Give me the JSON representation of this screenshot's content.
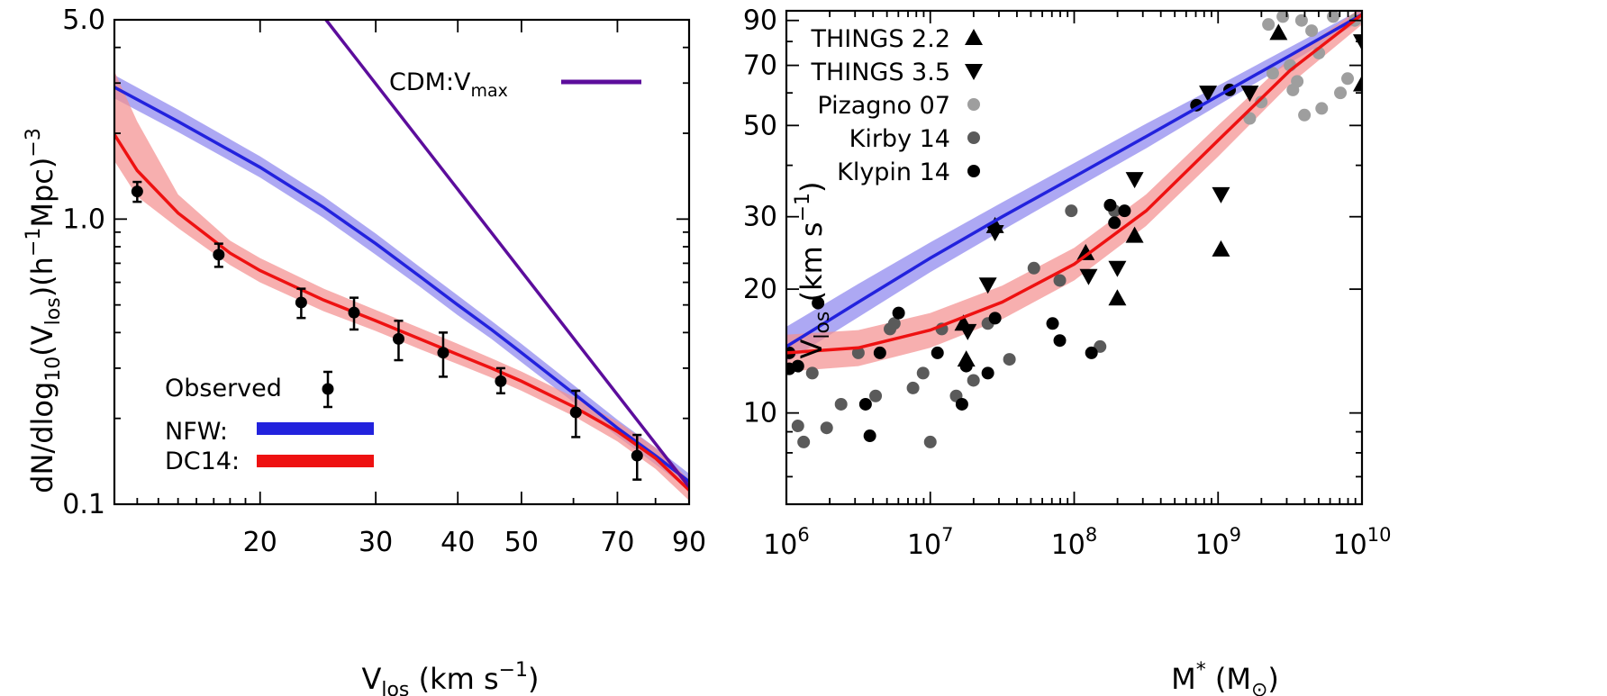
{
  "chart_data": [
    {
      "type": "line",
      "panel": "left",
      "xscale": "log",
      "yscale": "log",
      "xlim": [
        12,
        90
      ],
      "ylim": [
        0.1,
        5.0
      ],
      "xticks": [
        20,
        30,
        40,
        50,
        70,
        90
      ],
      "yticks": [
        0.1,
        1.0,
        5.0
      ],
      "xtick_labels": [
        "20",
        "30",
        "40",
        "50",
        "70",
        "90"
      ],
      "ytick_labels": [
        "0.1",
        "1.0",
        "5.0"
      ],
      "xlabel": {
        "main": "V",
        "sub": "los",
        "rest": " (km s",
        "sup": "−1",
        "end": ")"
      },
      "ylabel": {
        "a": "dN/dlog",
        "a_sub": "10",
        "b": "(V",
        "b_sub": "los",
        "c": ")(h",
        "c_sup": "−1",
        "d": "Mpc)",
        "d_sup": "−3"
      },
      "series": [
        {
          "name": "NFW",
          "color": "#2222dd",
          "band_color": "#8e86ee",
          "x": [
            12,
            15,
            20,
            25,
            30,
            35,
            40,
            45,
            50,
            60,
            70,
            80,
            90
          ],
          "y": [
            2.9,
            2.2,
            1.52,
            1.1,
            0.82,
            0.63,
            0.5,
            0.41,
            0.34,
            0.245,
            0.185,
            0.148,
            0.12
          ],
          "band_lo": [
            2.65,
            2.02,
            1.4,
            1.01,
            0.75,
            0.58,
            0.46,
            0.38,
            0.315,
            0.228,
            0.173,
            0.138,
            0.112
          ],
          "band_hi": [
            3.2,
            2.42,
            1.66,
            1.2,
            0.89,
            0.68,
            0.54,
            0.44,
            0.365,
            0.262,
            0.198,
            0.158,
            0.128
          ]
        },
        {
          "name": "DC14",
          "color": "#ee1111",
          "band_color": "#f49090",
          "x": [
            12,
            13,
            15,
            18,
            20,
            25,
            30,
            35,
            40,
            45,
            50,
            60,
            70,
            80,
            90
          ],
          "y": [
            1.98,
            1.48,
            1.05,
            0.76,
            0.66,
            0.52,
            0.44,
            0.38,
            0.335,
            0.3,
            0.27,
            0.22,
            0.18,
            0.145,
            0.112
          ],
          "band_lo": [
            1.6,
            1.2,
            0.93,
            0.69,
            0.6,
            0.475,
            0.405,
            0.35,
            0.31,
            0.278,
            0.25,
            0.204,
            0.166,
            0.133,
            0.103
          ],
          "band_hi": [
            3.3,
            2.2,
            1.22,
            0.84,
            0.73,
            0.57,
            0.48,
            0.415,
            0.365,
            0.325,
            0.292,
            0.238,
            0.195,
            0.158,
            0.122
          ]
        },
        {
          "name": "CDM:Vmax",
          "color": "#5c0d9c",
          "x": [
            25.2,
            90
          ],
          "y": [
            5.0,
            0.115
          ]
        }
      ],
      "observed": {
        "name": "Observed",
        "x": [
          13,
          17.3,
          23.1,
          27.8,
          32.5,
          38,
          46.5,
          60.5,
          75
        ],
        "y": [
          1.25,
          0.75,
          0.51,
          0.47,
          0.38,
          0.34,
          0.27,
          0.21,
          0.148
        ],
        "err_lo": [
          1.15,
          0.68,
          0.45,
          0.41,
          0.32,
          0.28,
          0.245,
          0.172,
          0.122
        ],
        "err_hi": [
          1.35,
          0.82,
          0.57,
          0.53,
          0.44,
          0.4,
          0.3,
          0.25,
          0.175
        ]
      },
      "legend": {
        "observed": "Observed",
        "nfw": "NFW:",
        "dc14": "DC14:",
        "cdm_main": "CDM:V",
        "cdm_sub": "max"
      }
    },
    {
      "type": "scatter",
      "panel": "right",
      "xscale": "log",
      "yscale": "log",
      "xlim": [
        1000000,
        10000000000
      ],
      "ylim": [
        6,
        95
      ],
      "xticks": [
        1000000,
        10000000,
        100000000,
        1000000000,
        10000000000
      ],
      "xtick_exponents": [
        "6",
        "7",
        "8",
        "9",
        "10"
      ],
      "xtick_base": "10",
      "yticks": [
        10,
        20,
        30,
        50,
        70,
        90
      ],
      "ytick_labels": [
        "10",
        "20",
        "30",
        "50",
        "70",
        "90"
      ],
      "xlabel": {
        "main": "M",
        "sup": "*",
        "rest": " (M",
        "sun": "⊙",
        "end": ")"
      },
      "ylabel": {
        "main": "V",
        "sub": "los",
        "rest": " (km s",
        "sup": "−1",
        "end": ")"
      },
      "series_lines": [
        {
          "name": "NFW",
          "color": "#2222dd",
          "band_color": "#8e86ee",
          "logx": [
            6,
            6.5,
            7,
            7.5,
            8,
            8.5,
            9,
            9.5,
            10
          ],
          "y": [
            14.5,
            18.6,
            23.8,
            30,
            37.5,
            47,
            59,
            74,
            93
          ],
          "band_lo": [
            13.3,
            17.1,
            22,
            27.8,
            35,
            44,
            56,
            71,
            90
          ],
          "band_hi": [
            16.2,
            20.6,
            26,
            32.5,
            40.5,
            50.5,
            62.5,
            77.5,
            96
          ]
        },
        {
          "name": "DC14",
          "color": "#ee1111",
          "band_color": "#f49090",
          "logx": [
            6,
            6.5,
            7,
            7.5,
            8,
            8.5,
            9,
            9.5,
            10
          ],
          "y": [
            14.0,
            14.4,
            15.9,
            18.6,
            23,
            31,
            46,
            68,
            93
          ],
          "band_lo": [
            12.6,
            13.0,
            14.4,
            16.9,
            21.0,
            28.5,
            42,
            63,
            88
          ],
          "band_hi": [
            15.5,
            15.9,
            17.5,
            20.4,
            25.2,
            34,
            50,
            73,
            97
          ]
        }
      ],
      "scatter_series": [
        {
          "name": "THINGS 2.2",
          "marker": "triangle-up",
          "color": "#000000",
          "logx": [
            7.25,
            7.45,
            7.23,
            8.08,
            8.3,
            8.42,
            9.02,
            9.42,
            10.0
          ],
          "y": [
            13.5,
            28.5,
            16.5,
            24.5,
            19,
            27,
            25,
            84,
            63
          ]
        },
        {
          "name": "THINGS 3.5",
          "marker": "triangle-down",
          "color": "#000000",
          "logx": [
            7.26,
            7.45,
            7.4,
            8.1,
            8.3,
            8.42,
            8.93,
            9.02,
            9.22,
            10.0
          ],
          "y": [
            15.8,
            27.5,
            20.5,
            21.5,
            22.5,
            37,
            60,
            34,
            60,
            80
          ]
        },
        {
          "name": "Pizagno 07",
          "marker": "circle",
          "color": "#9e9e9e",
          "logx": [
            9.22,
            9.3,
            9.35,
            9.38,
            9.45,
            9.5,
            9.52,
            9.55,
            9.58,
            9.6,
            9.65,
            9.7,
            9.72,
            9.8,
            9.85,
            9.9,
            9.95
          ],
          "y": [
            52,
            57,
            88,
            67,
            92,
            70,
            61,
            64,
            90,
            53,
            85,
            75,
            55,
            92,
            60,
            65,
            90
          ]
        },
        {
          "name": "Kirby 14",
          "marker": "circle",
          "color": "#5a5a5a",
          "logx": [
            6.08,
            6.12,
            6.18,
            6.28,
            6.38,
            6.5,
            6.62,
            6.75,
            6.95,
            7.0,
            7.18,
            7.3,
            7.4,
            7.55,
            7.72,
            7.9,
            7.98,
            8.18,
            8.28,
            6.72,
            6.88,
            7.08
          ],
          "y": [
            9.3,
            8.5,
            12.5,
            9.2,
            10.5,
            14,
            11,
            16.5,
            12.5,
            8.5,
            11,
            12,
            16.5,
            13.5,
            22.5,
            21,
            31,
            14.5,
            31,
            16,
            11.5,
            16
          ],
          "logx_extra": []
        },
        {
          "name": "Klypin 14",
          "marker": "circle",
          "color": "#000000",
          "logx": [
            6.02,
            6.08,
            6.22,
            6.55,
            6.58,
            6.65,
            6.78,
            7.05,
            7.22,
            7.25,
            7.4,
            7.45,
            7.85,
            7.9,
            8.12,
            8.25,
            8.28,
            8.35,
            8.85,
            9.08,
            6.02
          ],
          "y": [
            14,
            13,
            18.5,
            10.5,
            8.8,
            14,
            17.5,
            14,
            10.5,
            13,
            12.5,
            17,
            16.5,
            15,
            14,
            32,
            29,
            31,
            56,
            61,
            12.8
          ]
        }
      ],
      "legend": [
        {
          "label": "THINGS  2.2",
          "marker": "triangle-up",
          "color": "#000000"
        },
        {
          "label": "THINGS  3.5",
          "marker": "triangle-down",
          "color": "#000000"
        },
        {
          "label": "Pizagno  07",
          "marker": "circle",
          "color": "#9e9e9e"
        },
        {
          "label": "Kirby  14",
          "marker": "circle",
          "color": "#5a5a5a"
        },
        {
          "label": "Klypin  14",
          "marker": "circle",
          "color": "#000000"
        }
      ]
    }
  ]
}
